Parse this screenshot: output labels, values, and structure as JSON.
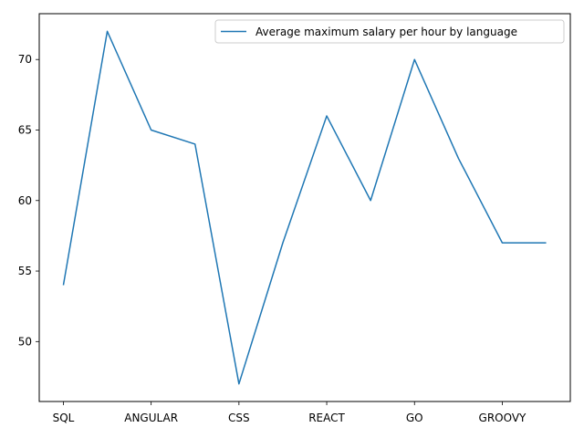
{
  "chart_data": {
    "type": "line",
    "x_tick_labels": [
      "SQL",
      "ANGULAR",
      "CSS",
      "REACT",
      "GO",
      "GROOVY"
    ],
    "x_tick_positions": [
      0,
      2,
      4,
      6,
      8,
      10
    ],
    "x": [
      0,
      1,
      2,
      3,
      4,
      5,
      6,
      7,
      8,
      9,
      10,
      11
    ],
    "xlim": [
      -0.55,
      11.55
    ],
    "ylim": [
      45.75,
      73.25
    ],
    "y_ticks": [
      50,
      55,
      60,
      65,
      70
    ],
    "series": [
      {
        "name": "Average maximum salary per hour by language",
        "color": "#1f77b4",
        "values": [
          54,
          72,
          65,
          64,
          47,
          57,
          66,
          60,
          70,
          63,
          57,
          57
        ]
      }
    ],
    "legend_position": "upper right",
    "grid": false
  }
}
